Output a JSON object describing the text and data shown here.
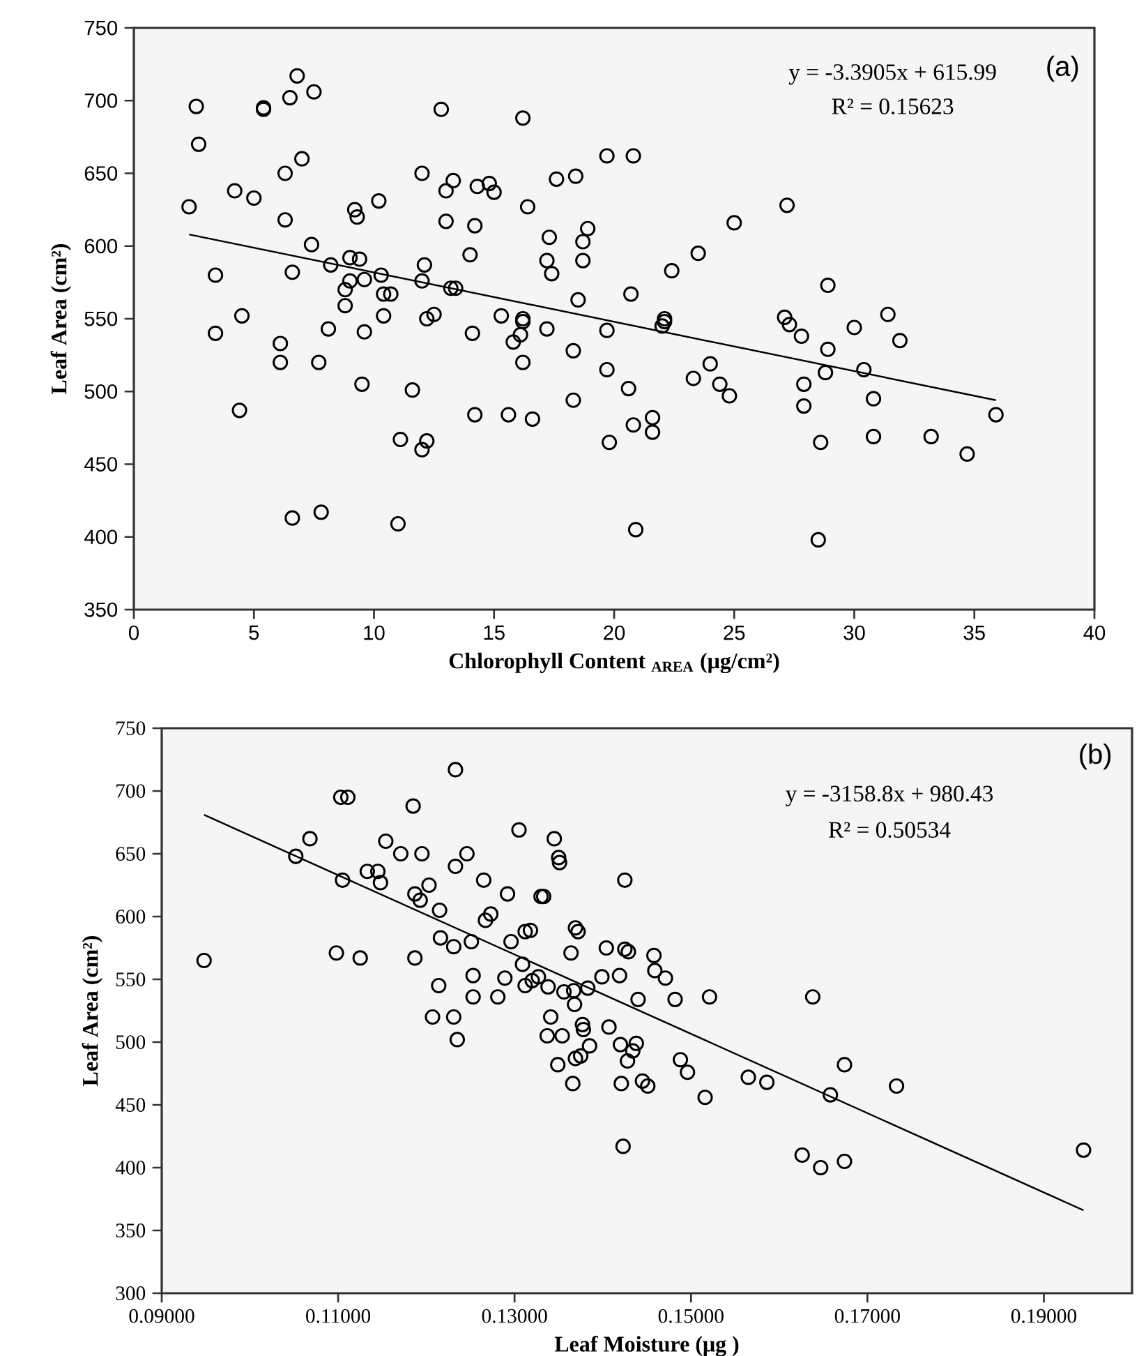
{
  "chart_data": [
    {
      "type": "scatter",
      "xlabel": "Chlorophyll Content $_{AREA}$ (μg/cm²)",
      "ylabel": "Leaf Area (cm²)",
      "xlim": [
        0,
        40
      ],
      "xticks": [
        0,
        5,
        10,
        15,
        20,
        25,
        30,
        35,
        40
      ],
      "ylim": [
        350,
        750
      ],
      "yticks": [
        350,
        400,
        450,
        500,
        550,
        600,
        650,
        700,
        750
      ],
      "grid": false,
      "annotations": [
        "y = -3.3905x + 615.99",
        "R² = 0.15623",
        "(a)"
      ],
      "series": [
        {
          "marker": "circle",
          "color": "#000000",
          "x": [
            2.3,
            2.6,
            2.7,
            3.4,
            3.4,
            4.2,
            4.5,
            4.4,
            5,
            5.4,
            5.4,
            6.1,
            6.1,
            6.3,
            6.3,
            6.5,
            6.6,
            6.6,
            6.8,
            7,
            7.4,
            7.5,
            7.7,
            7.8,
            8.1,
            8.2,
            8.8,
            8.8,
            9,
            9,
            9.2,
            9.3,
            9.4,
            9.5,
            9.6,
            9.6,
            10.2,
            10.3,
            10.4,
            10.4,
            10.7,
            11,
            11.1,
            11.6,
            12,
            12,
            12,
            12.1,
            12.2,
            12.2,
            12.5,
            12.8,
            13,
            13,
            13.2,
            13.3,
            13.4,
            14,
            14.1,
            14.2,
            14.2,
            14.3,
            14.8,
            15,
            15.3,
            15.6,
            15.8,
            16.1,
            16.2,
            16.2,
            16.2,
            16.2,
            16.4,
            16.6,
            17.2,
            17.2,
            17.3,
            17.4,
            17.6,
            18.3,
            18.3,
            18.4,
            18.5,
            18.7,
            18.7,
            18.9,
            19.7,
            19.7,
            19.7,
            19.8,
            20.6,
            20.7,
            20.8,
            20.9,
            20.8,
            21.6,
            21.6,
            22,
            22.1,
            22.1,
            22.4,
            23.3,
            23.5,
            24,
            24.4,
            24.8,
            25,
            27.2,
            27.1,
            27.3,
            27.8,
            27.9,
            27.9,
            28.5,
            28.6,
            28.8,
            28.9,
            28.9,
            30,
            30.4,
            30.8,
            30.8,
            31.4,
            31.9,
            33.2,
            34.7,
            35.9
          ],
          "values": [
            627,
            696,
            670,
            580,
            540,
            638,
            552,
            487,
            633,
            695,
            694,
            533,
            520,
            650,
            618,
            702,
            582,
            413,
            717,
            660,
            601,
            706,
            520,
            417,
            543,
            587,
            570,
            559,
            592,
            576,
            625,
            620,
            591,
            505,
            541,
            577,
            631,
            580,
            552,
            567,
            567,
            409,
            467,
            501,
            650,
            576,
            460,
            587,
            466,
            550,
            553,
            694,
            617,
            638,
            571,
            645,
            571,
            594,
            540,
            484,
            614,
            641,
            643,
            637,
            552,
            484,
            534,
            539,
            548,
            550,
            688,
            520,
            627,
            481,
            543,
            590,
            606,
            581,
            646,
            494,
            528,
            648,
            563,
            590,
            603,
            612,
            662,
            542,
            515,
            465,
            502,
            567,
            662,
            405,
            477,
            472,
            482,
            545,
            550,
            548,
            583,
            509,
            595,
            519,
            505,
            497,
            616,
            628,
            551,
            546,
            538,
            505,
            490,
            398,
            465,
            513,
            573,
            529,
            544,
            515,
            469,
            495,
            553,
            535,
            469,
            457,
            484
          ]
        },
        {
          "type": "line",
          "marker": "none",
          "color": "#000000",
          "x": [
            2.3,
            35.9
          ],
          "values": [
            608,
            494
          ]
        }
      ]
    },
    {
      "type": "scatter",
      "xlabel": "Leaf Moisture (μg )",
      "ylabel": "Leaf Area (cm²)",
      "xlim": [
        0.09,
        0.2
      ],
      "xticks": [
        {
          "value": 0.09,
          "label": "0.09000"
        },
        {
          "value": 0.11,
          "label": "0.11000"
        },
        {
          "value": 0.13,
          "label": "0.13000"
        },
        {
          "value": 0.15,
          "label": "0.15000"
        },
        {
          "value": 0.17,
          "label": "0.17000"
        },
        {
          "value": 0.19,
          "label": "0.19000"
        }
      ],
      "ylim": [
        300,
        750
      ],
      "yticks": [
        300,
        350,
        400,
        450,
        500,
        550,
        600,
        650,
        700,
        750
      ],
      "grid": false,
      "annotations": [
        "y = -3158.8x + 980.43",
        "R² = 0.50534",
        "(b)"
      ],
      "series": [
        {
          "marker": "circle",
          "color": "#000000",
          "x": [
            0.0948,
            0.1052,
            0.1068,
            0.1103,
            0.1111,
            0.1105,
            0.1098,
            0.1125,
            0.1133,
            0.1145,
            0.1148,
            0.1154,
            0.1171,
            0.1185,
            0.1187,
            0.1193,
            0.1195,
            0.1203,
            0.1187,
            0.1215,
            0.1216,
            0.1214,
            0.1207,
            0.1231,
            0.1235,
            0.1231,
            0.1233,
            0.1233,
            0.1246,
            0.1251,
            0.1253,
            0.1253,
            0.1265,
            0.1267,
            0.1273,
            0.1281,
            0.1289,
            0.1292,
            0.1296,
            0.1305,
            0.1309,
            0.1312,
            0.1318,
            0.1312,
            0.132,
            0.1327,
            0.133,
            0.1333,
            0.1338,
            0.1341,
            0.1337,
            0.1345,
            0.135,
            0.1351,
            0.1354,
            0.1349,
            0.1356,
            0.1364,
            0.1366,
            0.1368,
            0.1367,
            0.1369,
            0.1372,
            0.1369,
            0.1375,
            0.1377,
            0.1378,
            0.1385,
            0.1383,
            0.1399,
            0.1404,
            0.1407,
            0.1419,
            0.142,
            0.1421,
            0.1423,
            0.1425,
            0.1425,
            0.1429,
            0.1458,
            0.1459,
            0.1471,
            0.144,
            0.1482,
            0.1521,
            0.1638,
            0.1438,
            0.1434,
            0.1428,
            0.1445,
            0.1451,
            0.1488,
            0.1496,
            0.1516,
            0.1565,
            0.1586,
            0.1658,
            0.1674,
            0.1733,
            0.1626,
            0.1647,
            0.1674,
            0.1945
          ],
          "values": [
            565,
            648,
            662,
            695,
            695,
            629,
            571,
            567,
            636,
            636,
            627,
            660,
            650,
            688,
            618,
            613,
            650,
            625,
            567,
            605,
            583,
            545,
            520,
            520,
            502,
            576,
            640,
            717,
            650,
            580,
            553,
            536,
            629,
            597,
            602,
            536,
            551,
            618,
            580,
            669,
            562,
            588,
            589,
            545,
            549,
            552,
            616,
            616,
            544,
            520,
            505,
            662,
            647,
            643,
            505,
            482,
            540,
            571,
            467,
            530,
            541,
            591,
            588,
            487,
            489,
            514,
            510,
            497,
            543,
            552,
            575,
            512,
            553,
            498,
            467,
            417,
            629,
            574,
            572,
            569,
            557,
            551,
            534,
            534,
            536,
            536,
            499,
            493,
            485,
            469,
            465,
            486,
            476,
            456,
            472,
            468,
            458,
            482,
            465,
            410,
            400,
            405,
            414
          ]
        },
        {
          "type": "line",
          "marker": "none",
          "color": "#000000",
          "x": [
            0.0948,
            0.1945
          ],
          "values": [
            681,
            366
          ]
        }
      ]
    }
  ]
}
